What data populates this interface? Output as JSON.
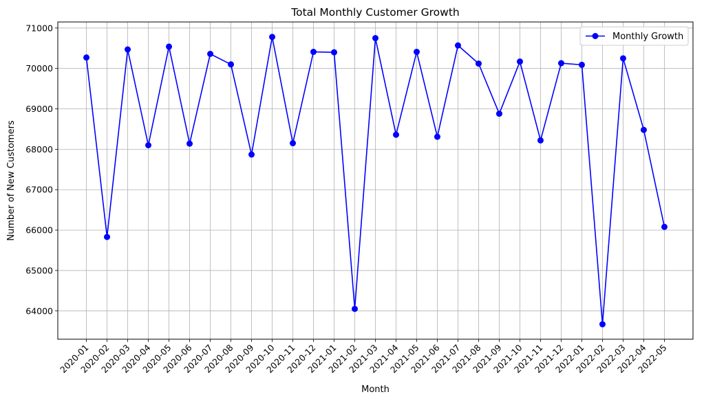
{
  "chart_data": {
    "type": "line",
    "title": "Total Monthly Customer Growth",
    "xlabel": "Month",
    "ylabel": "Number of New Customers",
    "ylim": [
      63300,
      71150
    ],
    "yticks": [
      64000,
      65000,
      66000,
      67000,
      68000,
      69000,
      70000,
      71000
    ],
    "grid": true,
    "legend_position": "top-right",
    "categories": [
      "2020-01",
      "2020-02",
      "2020-03",
      "2020-04",
      "2020-05",
      "2020-06",
      "2020-07",
      "2020-08",
      "2020-09",
      "2020-10",
      "2020-11",
      "2020-12",
      "2021-01",
      "2021-02",
      "2021-03",
      "2021-04",
      "2021-05",
      "2021-06",
      "2021-07",
      "2021-08",
      "2021-09",
      "2021-10",
      "2021-11",
      "2021-12",
      "2022-01",
      "2022-02",
      "2022-03",
      "2022-04",
      "2022-05"
    ],
    "series": [
      {
        "name": "Monthly Growth",
        "color": "#0000ff",
        "marker": "circle",
        "values": [
          70270,
          65830,
          70470,
          68100,
          70540,
          68140,
          70360,
          70100,
          67870,
          70780,
          68150,
          70410,
          70400,
          64050,
          70750,
          68360,
          70410,
          68310,
          70570,
          70120,
          68880,
          70170,
          68220,
          70130,
          70090,
          63670,
          70250,
          68480,
          66080
        ]
      }
    ]
  }
}
